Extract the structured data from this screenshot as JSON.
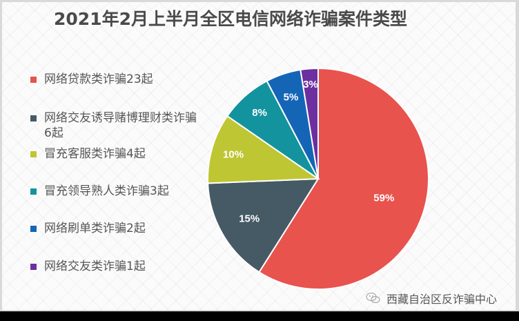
{
  "title": "2021年2月上半月全区电信网络诈骗案件类型",
  "legend": [
    {
      "label": "网络贷款类诈骗23起",
      "color": "#e8534e"
    },
    {
      "label": "网络交友诱导赌博理财类诈骗6起",
      "color": "#455a64"
    },
    {
      "label": "冒充客服类诈骗4起",
      "color": "#bfc634"
    },
    {
      "label": "冒充领导熟人类诈骗3起",
      "color": "#13939e"
    },
    {
      "label": "网络刷单类诈骗2起",
      "color": "#1565b7"
    },
    {
      "label": "网络交友类诈骗1起",
      "color": "#6d2fa0"
    }
  ],
  "footer": {
    "text": "西藏自治区反诈骗中心",
    "icon": "wechat-icon"
  },
  "chart_data": {
    "type": "pie",
    "title": "2021年2月上半月全区电信网络诈骗案件类型",
    "categories": [
      "网络贷款类诈骗",
      "网络交友诱导赌博理财类诈骗",
      "冒充客服类诈骗",
      "冒充领导熟人类诈骗",
      "网络刷单类诈骗",
      "网络交友类诈骗"
    ],
    "values": [
      23,
      6,
      4,
      3,
      2,
      1
    ],
    "percent_labels": [
      "59%",
      "15%",
      "10%",
      "8%",
      "5%",
      "3%"
    ],
    "colors": [
      "#e8534e",
      "#455a64",
      "#bfc634",
      "#13939e",
      "#1565b7",
      "#6d2fa0"
    ],
    "legend_position": "left",
    "start_angle": "12 o'clock, clockwise"
  }
}
